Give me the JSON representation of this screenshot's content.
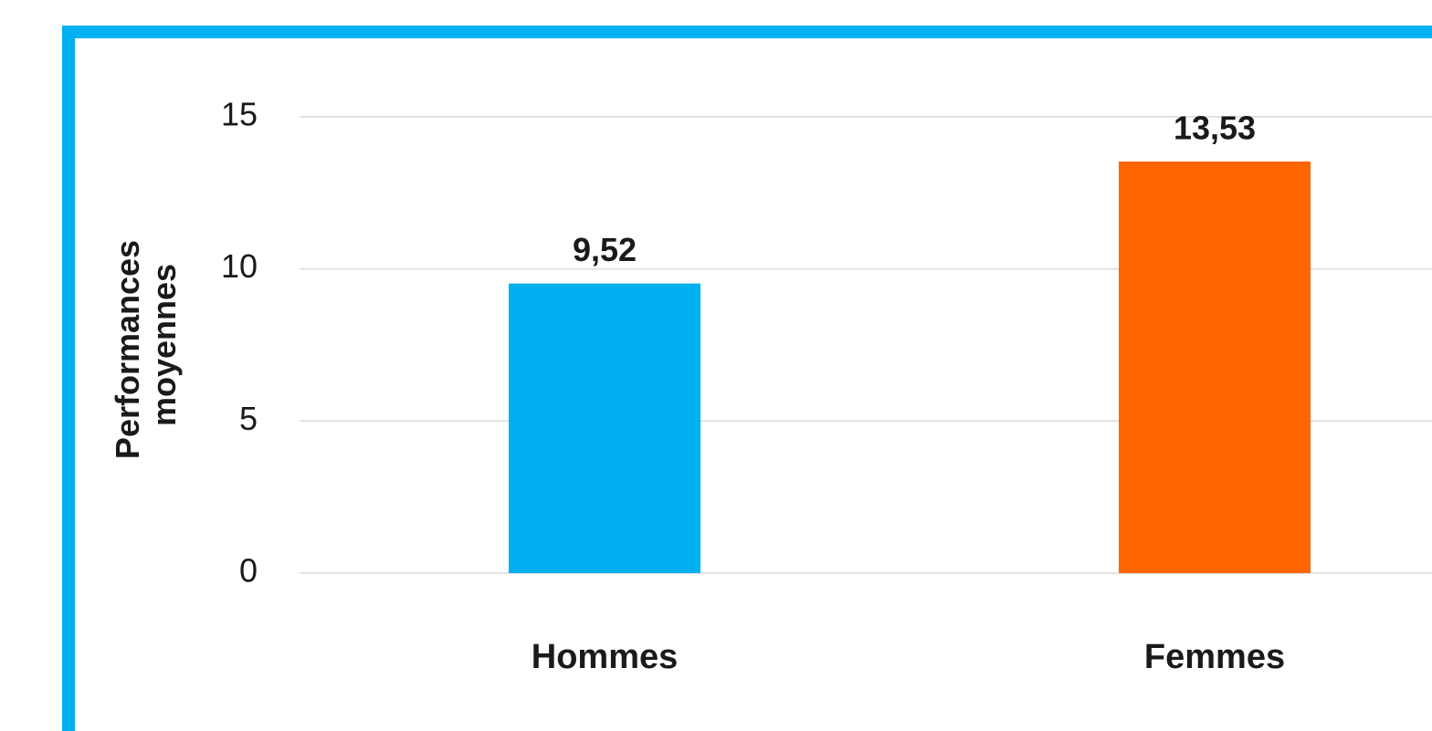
{
  "chart_data": {
    "type": "bar",
    "ylabel": [
      "Performances",
      "moyennes"
    ],
    "categories": [
      "Hommes",
      "Femmes"
    ],
    "values": [
      9.52,
      13.53
    ],
    "value_labels": [
      "9,52",
      "13,53"
    ],
    "colors": [
      "#00b0f0",
      "#ff6600"
    ],
    "ylim": [
      0,
      15
    ],
    "yticks": [
      0,
      5,
      10,
      15
    ],
    "grid": true
  }
}
